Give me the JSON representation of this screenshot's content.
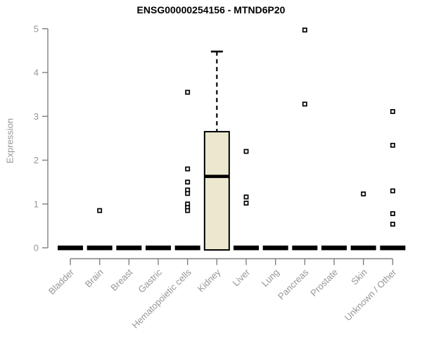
{
  "title": "ENSG00000254156 - MTND6P20",
  "y_axis": {
    "label": "Expression",
    "ticks": [
      0,
      1,
      2,
      3,
      4,
      5
    ]
  },
  "colors": {
    "box_fill": "#ece8d0",
    "box_stroke": "#000000",
    "axis": "#808080",
    "tick_label": "#969696",
    "title": "#000000",
    "outlier_fill": "#ffffff"
  },
  "chart_data": {
    "type": "boxplot",
    "title": "ENSG00000254156 - MTND6P20",
    "xlabel": "",
    "ylabel": "Expression",
    "ylim": [
      0,
      5
    ],
    "grid": false,
    "categories": [
      "Bladder",
      "Brain",
      "Breast",
      "Gastric",
      "Hematopoietic cells",
      "Kidney",
      "Liver",
      "Lung",
      "Pancreas",
      "Prostate",
      "Skin",
      "Unknown / Other"
    ],
    "series": [
      {
        "category": "Bladder",
        "q1": 0,
        "median": 0,
        "q3": 0,
        "whisker_low": 0,
        "whisker_high": 0,
        "outliers": []
      },
      {
        "category": "Brain",
        "q1": 0,
        "median": 0,
        "q3": 0,
        "whisker_low": 0,
        "whisker_high": 0,
        "outliers": [
          0.85
        ]
      },
      {
        "category": "Breast",
        "q1": 0,
        "median": 0,
        "q3": 0,
        "whisker_low": 0,
        "whisker_high": 0,
        "outliers": []
      },
      {
        "category": "Gastric",
        "q1": 0,
        "median": 0,
        "q3": 0,
        "whisker_low": 0,
        "whisker_high": 0,
        "outliers": []
      },
      {
        "category": "Hematopoietic cells",
        "q1": 0,
        "median": 0,
        "q3": 0,
        "whisker_low": 0,
        "whisker_high": 0,
        "outliers": [
          3.55,
          1.8,
          1.5,
          1.32,
          1.24,
          1.0,
          0.92,
          0.85
        ]
      },
      {
        "category": "Kidney",
        "q1": 0,
        "median": 1.63,
        "q3": 2.65,
        "whisker_low": 0,
        "whisker_high": 4.48,
        "outliers": []
      },
      {
        "category": "Liver",
        "q1": 0,
        "median": 0,
        "q3": 0,
        "whisker_low": 0,
        "whisker_high": 0,
        "outliers": [
          2.2,
          1.16,
          1.02
        ]
      },
      {
        "category": "Lung",
        "q1": 0,
        "median": 0,
        "q3": 0,
        "whisker_low": 0,
        "whisker_high": 0,
        "outliers": []
      },
      {
        "category": "Pancreas",
        "q1": 0,
        "median": 0,
        "q3": 0,
        "whisker_low": 0,
        "whisker_high": 0,
        "outliers": [
          4.97,
          3.28
        ]
      },
      {
        "category": "Prostate",
        "q1": 0,
        "median": 0,
        "q3": 0,
        "whisker_low": 0,
        "whisker_high": 0,
        "outliers": []
      },
      {
        "category": "Skin",
        "q1": 0,
        "median": 0,
        "q3": 0,
        "whisker_low": 0,
        "whisker_high": 0,
        "outliers": [
          1.23
        ]
      },
      {
        "category": "Unknown / Other",
        "q1": 0,
        "median": 0,
        "q3": 0,
        "whisker_low": 0,
        "whisker_high": 0,
        "outliers": [
          3.11,
          2.34,
          1.3,
          0.78,
          0.54
        ]
      }
    ]
  }
}
